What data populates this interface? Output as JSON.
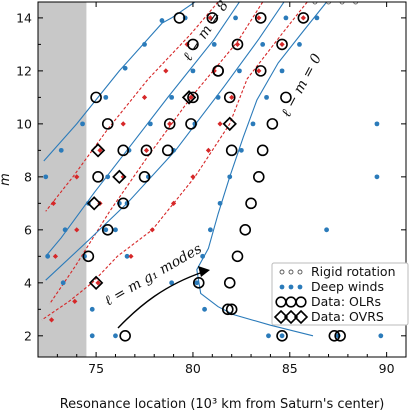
{
  "chart_data": {
    "type": "scatter",
    "xlabel": "Resonance location (10³ km from Saturn's center)",
    "ylabel": "m",
    "xlim": [
      72,
      91
    ],
    "ylim": [
      1.2,
      14.6
    ],
    "xticks": [
      75,
      80,
      85,
      90
    ],
    "yticks": [
      2,
      4,
      6,
      8,
      10,
      12,
      14
    ],
    "shaded_region_x": [
      72,
      74.5
    ],
    "colors": {
      "blue": "#2b7bba",
      "red": "#d62728",
      "shade": "#c8c8c8"
    },
    "legend": {
      "position": "lower right",
      "entries": [
        "Rigid rotation",
        "Deep winds",
        "Data: OLRs",
        "Data: OVRS"
      ]
    },
    "annotations": [
      {
        "text": "ℓ − m = 8",
        "at": [
          77.6,
          12.8
        ]
      },
      {
        "text": "ℓ − m = 0",
        "at": [
          84.6,
          11.6
        ]
      },
      {
        "text": "ℓ = m g₁ modes",
        "at": [
          77.5,
          4.1
        ]
      }
    ],
    "series": [
      {
        "kind": "blue",
        "points": [
          [
            80.1,
            14.6
          ],
          [
            78.9,
            14
          ],
          [
            78.4,
            13.8
          ],
          [
            76.2,
            12
          ],
          [
            74,
            10
          ],
          [
            72.3,
            8.6
          ]
        ]
      },
      {
        "kind": "red",
        "points": [
          [
            81.3,
            14.6
          ],
          [
            79.9,
            13.4
          ],
          [
            77.7,
            11.7
          ],
          [
            75.6,
            9.8
          ],
          [
            73.8,
            8
          ],
          [
            72.4,
            6.7
          ]
        ]
      },
      {
        "kind": "blue",
        "points": [
          [
            82.4,
            14.6
          ],
          [
            81.1,
            13.2
          ],
          [
            78.7,
            11
          ],
          [
            76.7,
            9.1
          ],
          [
            74.9,
            7.4
          ],
          [
            73.2,
            5.7
          ],
          [
            72.4,
            5
          ]
        ]
      },
      {
        "kind": "red",
        "points": [
          [
            83.6,
            14.6
          ],
          [
            82.3,
            13.1
          ],
          [
            79.9,
            11
          ],
          [
            77.6,
            8.7
          ],
          [
            75.7,
            6.7
          ],
          [
            73.9,
            4.6
          ],
          [
            72.6,
            3.2
          ]
        ]
      },
      {
        "kind": "blue",
        "points": [
          [
            84.7,
            14.6
          ],
          [
            83.4,
            13.2
          ],
          [
            81.6,
            11.4
          ],
          [
            79.1,
            9
          ],
          [
            76.6,
            7
          ],
          [
            74.6,
            5.6
          ],
          [
            72.4,
            4.1
          ]
        ]
      },
      {
        "kind": "red",
        "points": [
          [
            85.9,
            14.6
          ],
          [
            84.6,
            13.4
          ],
          [
            82.8,
            11.7
          ],
          [
            81.9,
            10
          ],
          [
            80.1,
            8
          ],
          [
            77.9,
            6
          ],
          [
            76.1,
            5
          ],
          [
            74.8,
            4
          ],
          [
            73.6,
            3.3
          ],
          [
            72.2,
            2.6
          ]
        ]
      },
      {
        "kind": "blue",
        "points": [
          [
            86.9,
            14.6
          ],
          [
            85.7,
            13.5
          ],
          [
            84.4,
            12.3
          ],
          [
            83.3,
            10.9
          ],
          [
            82.6,
            9.5
          ],
          [
            81.9,
            8
          ],
          [
            81.3,
            6.6
          ],
          [
            80.8,
            5.3
          ],
          [
            80.2,
            4.5
          ],
          [
            80.4,
            3.6
          ],
          [
            81.3,
            3.1
          ],
          [
            82.1,
            2.8
          ],
          [
            84,
            2.4
          ],
          [
            86.2,
            2
          ]
        ]
      }
    ],
    "model_markers": {
      "blue": [
        [
          79.6,
          14
        ],
        [
          78.4,
          13.9
        ],
        [
          77.5,
          13
        ],
        [
          76.5,
          12.1
        ],
        [
          75.5,
          11
        ],
        [
          74.3,
          10
        ],
        [
          73.2,
          9
        ],
        [
          72.4,
          8
        ],
        [
          82.2,
          14
        ],
        [
          81.1,
          13
        ],
        [
          80,
          12
        ],
        [
          78.9,
          11
        ],
        [
          77.8,
          10
        ],
        [
          76.7,
          9
        ],
        [
          75.6,
          8
        ],
        [
          74.6,
          7
        ],
        [
          73.4,
          6
        ],
        [
          72.5,
          5
        ],
        [
          84.8,
          14
        ],
        [
          83.6,
          13
        ],
        [
          82.4,
          12
        ],
        [
          81.3,
          11
        ],
        [
          80.1,
          10
        ],
        [
          79,
          9
        ],
        [
          77.7,
          8
        ],
        [
          76.6,
          7
        ],
        [
          75.5,
          6
        ],
        [
          74.4,
          5
        ],
        [
          73.3,
          4
        ],
        [
          86.4,
          14
        ],
        [
          85.5,
          13
        ],
        [
          84.6,
          12
        ],
        [
          83.8,
          11
        ],
        [
          83.1,
          10
        ],
        [
          82.5,
          9
        ],
        [
          81.9,
          8
        ],
        [
          81.4,
          7
        ],
        [
          80.9,
          6
        ],
        [
          80.5,
          5
        ],
        [
          80.2,
          4
        ],
        [
          80.6,
          3
        ],
        [
          83.9,
          2
        ],
        [
          84.6,
          2
        ],
        [
          87.5,
          2
        ],
        [
          89.7,
          2
        ],
        [
          86.6,
          3
        ],
        [
          86.9,
          6
        ],
        [
          89.5,
          8
        ],
        [
          89.5,
          10
        ],
        [
          78.9,
          4
        ],
        [
          74.8,
          3
        ],
        [
          74.8,
          2
        ],
        [
          76,
          2
        ],
        [
          76.2,
          7
        ],
        [
          76,
          6
        ],
        [
          76.6,
          5
        ]
      ],
      "red": [
        [
          80.9,
          14
        ],
        [
          79.7,
          13
        ],
        [
          78.6,
          12
        ],
        [
          77.5,
          11
        ],
        [
          76.4,
          10
        ],
        [
          75.2,
          9
        ],
        [
          74,
          8
        ],
        [
          72.8,
          7
        ],
        [
          83.4,
          14
        ],
        [
          82.3,
          13
        ],
        [
          81.1,
          12
        ],
        [
          79.9,
          11
        ],
        [
          78.8,
          10
        ],
        [
          77.6,
          9
        ],
        [
          76.4,
          8
        ],
        [
          75.2,
          7
        ],
        [
          74,
          6
        ],
        [
          72.9,
          5
        ],
        [
          85.7,
          14
        ],
        [
          84.6,
          13
        ],
        [
          83.4,
          12
        ],
        [
          82,
          11
        ],
        [
          80,
          8
        ],
        [
          81.4,
          10
        ],
        [
          80.8,
          9
        ],
        [
          79,
          7
        ],
        [
          77.9,
          6
        ],
        [
          76.8,
          5
        ],
        [
          75.1,
          4
        ],
        [
          73.9,
          3.3
        ],
        [
          72.7,
          2.6
        ]
      ],
      "rigid": [
        [
          86.3,
          14.6
        ],
        [
          87,
          14.6
        ],
        [
          87.7,
          14.6
        ],
        [
          88.4,
          14.6
        ]
      ]
    },
    "data_olrs": [
      [
        75,
        11
      ],
      [
        75.6,
        10
      ],
      [
        76.4,
        9
      ],
      [
        77.6,
        9
      ],
      [
        78.8,
        10
      ],
      [
        80,
        11
      ],
      [
        81.3,
        12
      ],
      [
        82.3,
        13
      ],
      [
        83.5,
        14
      ],
      [
        81.3,
        12
      ],
      [
        81.9,
        11
      ],
      [
        79.9,
        10
      ],
      [
        78.7,
        9
      ],
      [
        77.5,
        8
      ],
      [
        76.4,
        7
      ],
      [
        75.6,
        6
      ],
      [
        74.6,
        5
      ],
      [
        75.1,
        8
      ],
      [
        81,
        14
      ],
      [
        79.3,
        14
      ],
      [
        80,
        13
      ],
      [
        82,
        9
      ],
      [
        83.6,
        9
      ],
      [
        83.4,
        8
      ],
      [
        83,
        7
      ],
      [
        82.7,
        6
      ],
      [
        82.3,
        5
      ],
      [
        81.9,
        4
      ],
      [
        80.3,
        4
      ],
      [
        81.8,
        3
      ],
      [
        82,
        3
      ],
      [
        84.4,
        3
      ],
      [
        84.6,
        2
      ],
      [
        87.3,
        2
      ],
      [
        87.6,
        2
      ],
      [
        76.5,
        2
      ],
      [
        85.7,
        14
      ],
      [
        84.6,
        13
      ],
      [
        83.5,
        12
      ],
      [
        84.1,
        10
      ],
      [
        84.8,
        11
      ]
    ],
    "data_ovrs": [
      [
        79.8,
        11
      ],
      [
        81.9,
        10
      ],
      [
        75.1,
        9
      ],
      [
        76.2,
        8
      ],
      [
        74.9,
        7
      ],
      [
        75,
        4
      ]
    ]
  },
  "legend_labels": {
    "rigid": "Rigid rotation",
    "deep": "Deep winds",
    "olrs": "Data: OLRs",
    "ovrs": "Data: OVRS"
  },
  "annotation_text": {
    "l8": "ℓ − m = 8",
    "l0": "ℓ − m = 0",
    "g1": "ℓ = m g₁ modes"
  }
}
